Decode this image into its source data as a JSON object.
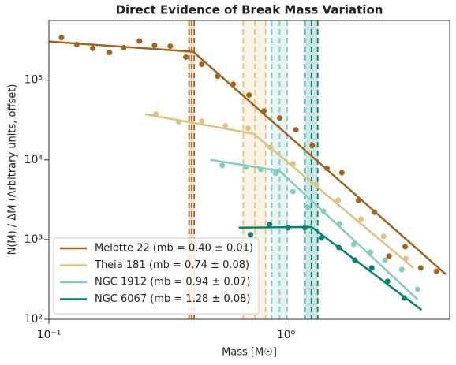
{
  "chart_data": {
    "type": "scatter",
    "title": "Direct Evidence of Break Mass Variation",
    "x_label": "Mass [M☉]",
    "y_label": "N(M) / ΔM (Arbitrary units, offset)",
    "log_x": true,
    "log_y": true,
    "legend": "lower left",
    "xlim": [
      0.1,
      4.9
    ],
    "ylim": [
      100,
      560000
    ],
    "xticks": [
      {
        "value": 0.1,
        "label": "10⁻¹"
      },
      {
        "value": 1,
        "label": "10⁰"
      }
    ],
    "yticks": [
      {
        "value": 100,
        "label": "10²"
      },
      {
        "value": 1000,
        "label": "10³"
      },
      {
        "value": 10000,
        "label": "10⁴"
      },
      {
        "value": 100000,
        "label": "10⁵"
      }
    ],
    "series": [
      {
        "name": "Melotte 22 (mb = 0.40 ± 0.01)",
        "color": "#a6611a",
        "break": 0.4,
        "break_err": 0.01,
        "x": [
          0.113,
          0.131,
          0.153,
          0.18,
          0.207,
          0.241,
          0.279,
          0.325,
          0.378,
          0.441,
          0.514,
          0.599,
          0.698,
          0.807,
          0.94,
          1.1,
          1.29,
          1.49,
          1.72,
          2.02,
          2.36,
          2.72,
          3.18,
          3.7,
          4.31
        ],
        "values": [
          343000,
          280000,
          250000,
          222000,
          255000,
          310000,
          273000,
          267000,
          194000,
          158000,
          112000,
          89000,
          65000,
          41000,
          33500,
          23800,
          15100,
          7800,
          6900,
          3100,
          2200,
          620,
          815,
          440,
          400
        ],
        "fit_x": [
          0.1,
          0.406,
          4.72
        ],
        "fit_values": [
          305000,
          227000,
          367
        ]
      },
      {
        "name": "Theia 181 (mb = 0.74 ± 0.08)",
        "color": "#dfc27d",
        "break": 0.74,
        "break_err": 0.08,
        "x": [
          0.283,
          0.353,
          0.441,
          0.555,
          0.693,
          0.859,
          1.07,
          1.34,
          1.66,
          2.07,
          2.58,
          3.2
        ],
        "values": [
          37500,
          29900,
          30500,
          26700,
          24900,
          14400,
          8900,
          4930,
          3130,
          1810,
          1100,
          578
        ],
        "fit_x": [
          0.254,
          0.731,
          3.45
        ],
        "fit_values": [
          37500,
          21200,
          440
        ]
      },
      {
        "name": "NGC 1912 (mb = 0.94 ± 0.07)",
        "color": "#80cdc1",
        "break": 0.94,
        "break_err": 0.07,
        "x": [
          0.538,
          0.677,
          0.783,
          0.905,
          1.07,
          1.24,
          1.44,
          1.68,
          1.93,
          2.27,
          2.62,
          3.08,
          3.59
        ],
        "values": [
          8500,
          8100,
          7600,
          6800,
          4000,
          2550,
          2270,
          1580,
          873,
          695,
          553,
          421,
          238
        ],
        "fit_x": [
          0.48,
          0.94,
          3.59
        ],
        "fit_values": [
          10000,
          7260,
          177
        ]
      },
      {
        "name": "NGC 6067 (mb = 1.28 ± 0.08)",
        "color": "#018571",
        "break": 1.28,
        "break_err": 0.08,
        "x": [
          0.708,
          0.852,
          1.02,
          1.2,
          1.41,
          1.67,
          1.95,
          2.3,
          2.68,
          3.15
        ],
        "values": [
          1150,
          1540,
          1410,
          1410,
          1050,
          796,
          553,
          440,
          299,
          185
        ],
        "fit_x": [
          0.632,
          1.28,
          3.73
        ],
        "fit_values": [
          1410,
          1440,
          131
        ]
      }
    ]
  }
}
